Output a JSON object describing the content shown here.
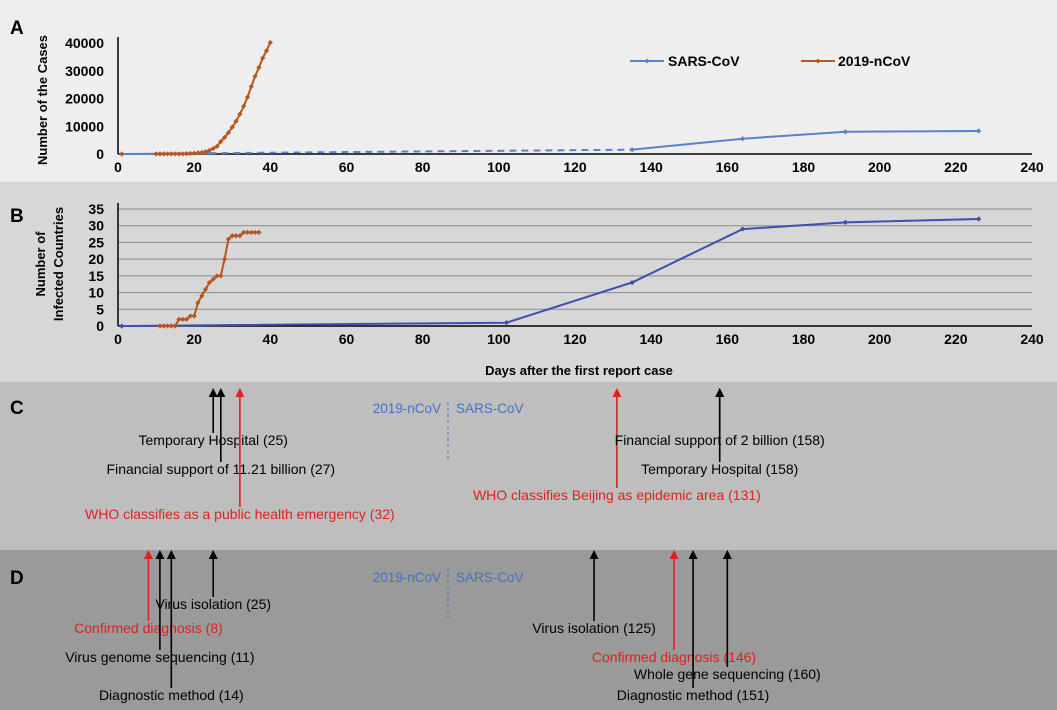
{
  "panels": {
    "a": "A",
    "b": "B",
    "c": "C",
    "d": "D"
  },
  "colors": {
    "sars": "#5b80cc",
    "sars_b": "#3f4fb0",
    "ncov": "#b8561e",
    "event_black": "#000000",
    "event_red": "#e02020",
    "side_label": "#4472c4",
    "bg_a": "#eeeeee",
    "bg_b": "#d7d7d7",
    "bg_c": "#bebebe",
    "bg_d": "#9a9a9a"
  },
  "chart_data": [
    {
      "type": "line",
      "ylabel": "Number of the Cases",
      "xlim": [
        0,
        240
      ],
      "ylim": [
        0,
        40000
      ],
      "x_ticks": [
        "0",
        "20",
        "40",
        "60",
        "80",
        "100",
        "120",
        "140",
        "160",
        "180",
        "200",
        "220",
        "240"
      ],
      "y_ticks": [
        "0",
        "10000",
        "20000",
        "30000",
        "40000"
      ],
      "legend": "top-right",
      "grid": false,
      "series": [
        {
          "name": "SARS-CoV",
          "color": "sars",
          "segments": [
            {
              "style": "solid",
              "points": [
                [
                  1,
                  0
                ],
                [
                  24,
                  300
                ]
              ]
            },
            {
              "style": "dashed",
              "points": [
                [
                  24,
                  300
                ],
                [
                  135,
                  1550
                ]
              ]
            },
            {
              "style": "solid",
              "points": [
                [
                  135,
                  1550
                ],
                [
                  164,
                  5500
                ],
                [
                  191,
                  8000
                ],
                [
                  226,
                  8300
                ]
              ]
            }
          ]
        },
        {
          "name": "2019-nCoV",
          "color": "ncov",
          "segments": [
            {
              "style": "solid",
              "points": [
                [
                  1,
                  0
                ]
              ]
            },
            {
              "style": "solid",
              "points": [
                [
                  10,
                  41
                ],
                [
                  11,
                  41
                ],
                [
                  12,
                  41
                ],
                [
                  13,
                  41
                ],
                [
                  14,
                  41
                ],
                [
                  15,
                  41
                ],
                [
                  16,
                  45
                ],
                [
                  17,
                  62
                ],
                [
                  18,
                  121
                ],
                [
                  19,
                  198
                ],
                [
                  20,
                  291
                ],
                [
                  21,
                  440
                ],
                [
                  22,
                  571
                ],
                [
                  23,
                  830
                ],
                [
                  24,
                  1287
                ],
                [
                  25,
                  1975
                ],
                [
                  26,
                  2744
                ],
                [
                  27,
                  4515
                ],
                [
                  28,
                  5974
                ],
                [
                  29,
                  7711
                ],
                [
                  30,
                  9692
                ],
                [
                  31,
                  11791
                ],
                [
                  32,
                  14380
                ],
                [
                  33,
                  17205
                ],
                [
                  34,
                  20438
                ],
                [
                  35,
                  24324
                ],
                [
                  36,
                  28018
                ],
                [
                  37,
                  31161
                ],
                [
                  38,
                  34546
                ],
                [
                  39,
                  37198
                ],
                [
                  40,
                  40171
                ]
              ]
            }
          ]
        }
      ]
    },
    {
      "type": "line",
      "ylabel": "Number of Infected Countries",
      "xlabel": "Days after the first report case",
      "xlim": [
        0,
        240
      ],
      "ylim": [
        0,
        35
      ],
      "x_ticks": [
        "0",
        "20",
        "40",
        "60",
        "80",
        "100",
        "120",
        "140",
        "160",
        "180",
        "200",
        "220",
        "240"
      ],
      "y_ticks": [
        "0",
        "5",
        "10",
        "15",
        "20",
        "25",
        "30",
        "35"
      ],
      "grid": true,
      "series": [
        {
          "name": "SARS-CoV",
          "color": "sars_b",
          "segments": [
            {
              "style": "solid",
              "points": [
                [
                  1,
                  0
                ],
                [
                  102,
                  1
                ],
                [
                  135,
                  13
                ],
                [
                  164,
                  29
                ],
                [
                  191,
                  31
                ],
                [
                  226,
                  32
                ]
              ]
            }
          ]
        },
        {
          "name": "2019-nCoV",
          "color": "ncov",
          "segments": [
            {
              "style": "solid",
              "points": [
                [
                  11,
                  0
                ],
                [
                  12,
                  0
                ],
                [
                  13,
                  0
                ],
                [
                  14,
                  0
                ],
                [
                  15,
                  0
                ],
                [
                  16,
                  2
                ],
                [
                  17,
                  2
                ],
                [
                  18,
                  2
                ],
                [
                  19,
                  3
                ],
                [
                  20,
                  3
                ],
                [
                  21,
                  7
                ],
                [
                  22,
                  9
                ],
                [
                  23,
                  11
                ],
                [
                  24,
                  13
                ],
                [
                  25,
                  14
                ],
                [
                  26,
                  15
                ],
                [
                  27,
                  15
                ],
                [
                  28,
                  20
                ],
                [
                  29,
                  26
                ],
                [
                  30,
                  27
                ],
                [
                  31,
                  27
                ],
                [
                  32,
                  27
                ],
                [
                  33,
                  28
                ],
                [
                  34,
                  28
                ],
                [
                  35,
                  28
                ],
                [
                  36,
                  28
                ],
                [
                  37,
                  28
                ]
              ]
            }
          ]
        }
      ]
    }
  ],
  "timeline_c": {
    "left_label": "2019-nCoV",
    "right_label": "SARS-CoV",
    "events": [
      {
        "text": "Temporary Hospital (25)",
        "day": 25,
        "color": "black",
        "level": 1
      },
      {
        "text": "Financial support of 11.21 billion (27)",
        "day": 27,
        "color": "black",
        "level": 2
      },
      {
        "text": "WHO classifies as a public health emergency (32)",
        "day": 32,
        "color": "red",
        "level": 4
      },
      {
        "text": "WHO classifies Beijing as epidemic area (131)",
        "day": 131,
        "color": "red",
        "level": 3
      },
      {
        "text": "Financial support of 2 billion (158)",
        "day": 158,
        "color": "black",
        "level": 1
      },
      {
        "text": "Temporary Hospital (158)",
        "day": 158,
        "color": "black",
        "level": 2
      }
    ]
  },
  "timeline_d": {
    "left_label": "2019-nCoV",
    "right_label": "SARS-CoV",
    "events": [
      {
        "text": "Virus isolation (25)",
        "day": 25,
        "color": "black",
        "level": 1
      },
      {
        "text": "Confirmed diagnosis (8)",
        "day": 8,
        "color": "red",
        "level": 2
      },
      {
        "text": "Virus genome sequencing (11)",
        "day": 11,
        "color": "black",
        "level": 3
      },
      {
        "text": "Diagnostic method (14)",
        "day": 14,
        "color": "black",
        "level": 5
      },
      {
        "text": "Virus isolation (125)",
        "day": 125,
        "color": "black",
        "level": 2
      },
      {
        "text": "Confirmed diagnosis (146)",
        "day": 146,
        "color": "red",
        "level": 3
      },
      {
        "text": "Whole gene sequencing (160)",
        "day": 160,
        "color": "black",
        "level": 4
      },
      {
        "text": "Diagnostic method (151)",
        "day": 151,
        "color": "black",
        "level": 5
      }
    ]
  }
}
